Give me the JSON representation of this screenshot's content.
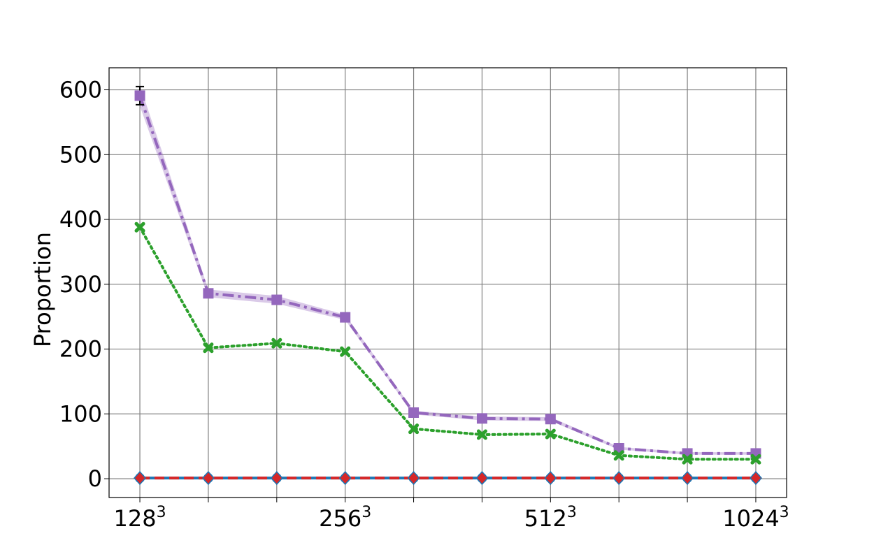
{
  "chart_data": {
    "type": "line",
    "title": "",
    "xlabel": "",
    "ylabel": "Proportion",
    "x": [
      0,
      1,
      2,
      3,
      4,
      5,
      6,
      7,
      8,
      9
    ],
    "xticks": [
      {
        "x": 0,
        "base": "128",
        "exp": "3"
      },
      {
        "x": 3,
        "base": "256",
        "exp": "3"
      },
      {
        "x": 6,
        "base": "512",
        "exp": "3"
      },
      {
        "x": 9,
        "base": "1024",
        "exp": "3"
      }
    ],
    "yticks": [
      0,
      100,
      200,
      300,
      400,
      500,
      600
    ],
    "xlim": [
      -0.45,
      9.45
    ],
    "ylim": [
      -29,
      634
    ],
    "grid": true,
    "legend": "none",
    "series": [
      {
        "values": [
          591,
          286,
          276,
          249,
          102,
          93,
          92,
          47,
          39,
          39
        ],
        "band": [
          16,
          6,
          6,
          4,
          3,
          3,
          3,
          2,
          2,
          2
        ],
        "error_bars": [
          14,
          0,
          0,
          0,
          0,
          0,
          0,
          0,
          0,
          0
        ],
        "color": "#9467bd",
        "style": "dashdot",
        "marker": "square"
      },
      {
        "values": [
          388,
          202,
          209,
          196,
          77,
          68,
          69,
          36,
          30,
          30
        ],
        "band": [
          0,
          0,
          0,
          0,
          0,
          0,
          0,
          0,
          0,
          0
        ],
        "error_bars": [
          0,
          0,
          0,
          0,
          0,
          0,
          0,
          0,
          0,
          0
        ],
        "color": "#2ca02c",
        "style": "dotted",
        "marker": "x"
      },
      {
        "values": [
          1,
          1,
          1,
          1,
          1,
          1,
          1,
          1,
          1,
          1
        ],
        "band": [
          0,
          0,
          0,
          0,
          0,
          0,
          0,
          0,
          0,
          0
        ],
        "error_bars": [
          0,
          0,
          0,
          0,
          0,
          0,
          0,
          0,
          0,
          0
        ],
        "color": "#1f77b4",
        "style": "solid",
        "marker": "circle"
      },
      {
        "values": [
          1,
          1,
          1,
          1,
          1,
          1,
          1,
          1,
          1,
          1
        ],
        "band": [
          0,
          0,
          0,
          0,
          0,
          0,
          0,
          0,
          0,
          0
        ],
        "error_bars": [
          0,
          0,
          0,
          0,
          0,
          0,
          0,
          0,
          0,
          0
        ],
        "color": "#d62728",
        "style": "dashed",
        "marker": "diamond"
      }
    ]
  }
}
